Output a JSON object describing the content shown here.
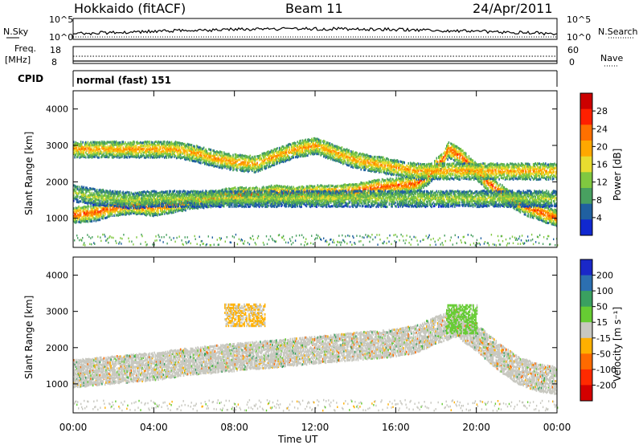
{
  "header": {
    "station": "Hokkaido (fitACF)",
    "beam": "Beam 11",
    "date": "24/Apr/2011"
  },
  "nsky_panel": {
    "left_label": "N.Sky",
    "right_label": "N.Search",
    "y_ticks": [
      "10^5",
      "10^0"
    ]
  },
  "freq_panel": {
    "left_label": "Freq.",
    "left_unit": "[MHz]",
    "right_label": "Nave",
    "y_ticks_left": [
      "18",
      "8"
    ],
    "y_ticks_right": [
      "60",
      "0"
    ]
  },
  "cpid_panel": {
    "label": "CPID",
    "mode": "normal (fast) 151"
  },
  "power_panel": {
    "ylabel": "Slant Range [km]",
    "colorbar_label": "Power [dB]",
    "colorbar_ticks": [
      "28",
      "24",
      "20",
      "16",
      "12",
      "8",
      "4"
    ],
    "colorbar_colors": [
      "#cc0000",
      "#ff2000",
      "#ff7000",
      "#ffa800",
      "#e8dc30",
      "#80c840",
      "#48a060",
      "#2060a0",
      "#1028d0"
    ]
  },
  "velocity_panel": {
    "ylabel": "Slant Range [km]",
    "colorbar_label": "Velocity [m s⁻¹]",
    "colorbar_ticks": [
      "200",
      "100",
      "50",
      "15",
      "-15",
      "-50",
      "-100",
      "-200"
    ],
    "colorbar_colors": [
      "#1a28c8",
      "#2c6fb0",
      "#3aa060",
      "#66cc33",
      "#c8c8c0",
      "#ffb000",
      "#ff6a00",
      "#ff2a00",
      "#d40000"
    ]
  },
  "x_axis": {
    "label": "Time UT",
    "ticks": [
      "00:00",
      "04:00",
      "08:00",
      "12:00",
      "16:00",
      "20:00",
      "00:00"
    ]
  },
  "chart_data": {
    "type": "heatmap",
    "x_unit": "hours UT",
    "x_range": [
      0,
      24
    ],
    "y_unit": "km",
    "y_ticks": [
      1000,
      2000,
      3000,
      4000
    ],
    "y_range": [
      200,
      4500
    ],
    "panels": [
      {
        "name": "Power",
        "unit": "dB",
        "colorbar_range": [
          0,
          32
        ],
        "features": [
          {
            "kind": "echo_band",
            "points": [
              [
                0,
                1100
              ],
              [
                1,
                1150
              ],
              [
                2,
                1300
              ],
              [
                3,
                1350
              ],
              [
                4,
                1300
              ],
              [
                5,
                1400
              ],
              [
                6,
                1500
              ],
              [
                7,
                1550
              ],
              [
                8,
                1650
              ],
              [
                9,
                1650
              ],
              [
                10,
                1700
              ],
              [
                11,
                1650
              ],
              [
                12,
                1700
              ],
              [
                13,
                1700
              ],
              [
                14,
                1750
              ],
              [
                15,
                1850
              ],
              [
                16,
                1900
              ],
              [
                17,
                1950
              ],
              [
                17.7,
                2200
              ],
              [
                18,
                2450
              ],
              [
                18.3,
                2600
              ],
              [
                18.6,
                2900
              ],
              [
                19.2,
                2700
              ],
              [
                19.8,
                2400
              ],
              [
                20.5,
                2000
              ],
              [
                21.5,
                1600
              ],
              [
                22.5,
                1300
              ],
              [
                23.5,
                1100
              ],
              [
                24,
                1000
              ]
            ],
            "value_db": 26
          },
          {
            "kind": "echo_band",
            "points": [
              [
                5,
                2900
              ],
              [
                6,
                2800
              ],
              [
                7,
                2650
              ],
              [
                8,
                2550
              ],
              [
                9,
                2500
              ],
              [
                10,
                2700
              ],
              [
                11,
                2900
              ],
              [
                12,
                3000
              ],
              [
                13,
                2800
              ],
              [
                14,
                2600
              ],
              [
                15,
                2500
              ],
              [
                16,
                2400
              ],
              [
                17,
                2300
              ]
            ],
            "value_db": 22
          },
          {
            "kind": "echo_band",
            "points": [
              [
                0,
                1700
              ],
              [
                1,
                1600
              ],
              [
                2,
                1550
              ],
              [
                3,
                1500
              ],
              [
                4,
                1550
              ]
            ],
            "value_db": 14
          }
        ]
      },
      {
        "name": "Velocity",
        "unit": "m s-1",
        "colorbar_range": [
          -200,
          200
        ],
        "features": [
          {
            "kind": "echo_band",
            "points": [
              [
                0,
                1300
              ],
              [
                2,
                1400
              ],
              [
                4,
                1500
              ],
              [
                6,
                1650
              ],
              [
                8,
                1750
              ],
              [
                10,
                1850
              ],
              [
                12,
                1950
              ],
              [
                14,
                2050
              ],
              [
                16,
                2150
              ],
              [
                17,
                2250
              ],
              [
                18,
                2500
              ],
              [
                19,
                2700
              ],
              [
                20,
                2300
              ],
              [
                21,
                1800
              ],
              [
                22,
                1400
              ],
              [
                23,
                1200
              ],
              [
                24,
                1100
              ]
            ],
            "value_ms": 0
          },
          {
            "kind": "echo_patch",
            "x": [
              7.5,
              9.5
            ],
            "y": [
              2600,
              3200
            ],
            "value_ms": -30
          },
          {
            "kind": "echo_patch",
            "x": [
              18.5,
              20
            ],
            "y": [
              2400,
              3200
            ],
            "value_ms": 40
          }
        ]
      }
    ]
  }
}
